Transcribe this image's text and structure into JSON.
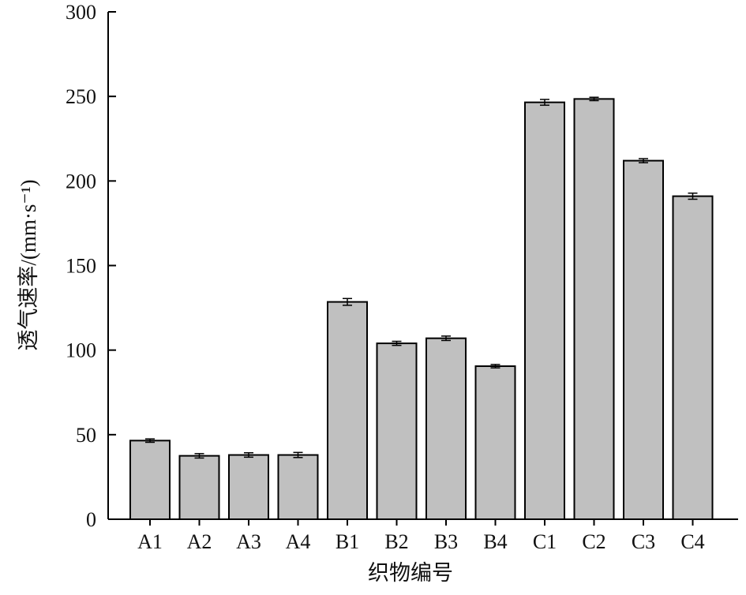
{
  "chart_data": {
    "type": "bar",
    "categories": [
      "A1",
      "A2",
      "A3",
      "A4",
      "B1",
      "B2",
      "B3",
      "B4",
      "C1",
      "C2",
      "C3",
      "C4"
    ],
    "values": [
      46.5,
      37.5,
      38.0,
      38.0,
      128.5,
      104.0,
      107.0,
      90.5,
      246.5,
      248.5,
      212.0,
      191.0
    ],
    "errors": [
      1.0,
      1.3,
      1.3,
      1.5,
      2.0,
      1.2,
      1.3,
      1.0,
      1.7,
      1.0,
      1.2,
      1.8
    ],
    "xlabel": "织物编号",
    "ylabel": "透气速率/(mm·s⁻¹)",
    "ylim": [
      0,
      300
    ],
    "yticks": [
      0,
      50,
      100,
      150,
      200,
      250,
      300
    ],
    "grid": false,
    "bar_color": "#c0c0c0",
    "edge_color": "#000000"
  }
}
